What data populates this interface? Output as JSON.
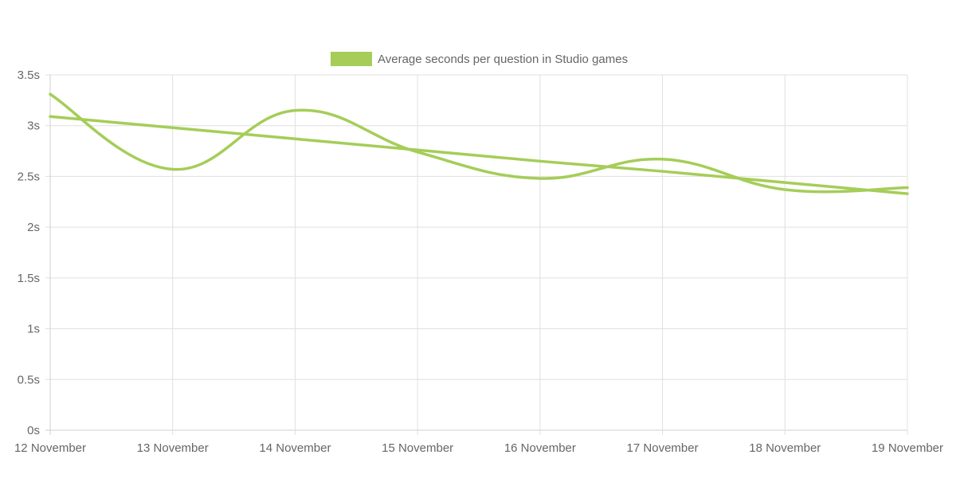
{
  "chart_data": {
    "type": "line",
    "title": "",
    "xlabel": "",
    "ylabel": "",
    "categories": [
      "12 November",
      "13 November",
      "14 November",
      "15 November",
      "16 November",
      "17 November",
      "18 November",
      "19 November"
    ],
    "ylim": [
      0,
      3.5
    ],
    "y_ticks": [
      "0s",
      "0.5s",
      "1s",
      "1.5s",
      "2s",
      "2.5s",
      "3s",
      "3.5s"
    ],
    "grid": true,
    "legend_position": "top-center",
    "series": [
      {
        "name": "Average seconds per question in Studio games",
        "values": [
          3.31,
          2.57,
          3.15,
          2.74,
          2.48,
          2.67,
          2.37,
          2.39
        ],
        "color": "#a5cd58",
        "curve": "smooth"
      },
      {
        "values": [
          3.09,
          2.98,
          2.87,
          2.76,
          2.65,
          2.55,
          2.44,
          2.33
        ],
        "color": "#a5cd58",
        "curve": "straight"
      }
    ]
  }
}
